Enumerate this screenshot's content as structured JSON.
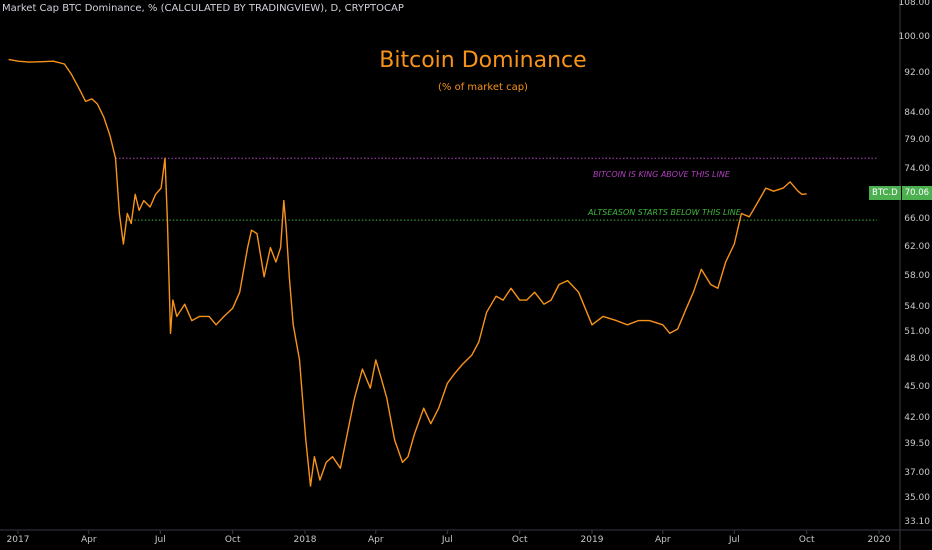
{
  "header": {
    "label": "Market Cap BTC Dominance, % (CALCULATED BY TRADINGVIEW), D, CRYPTOCAP"
  },
  "chart_data": {
    "type": "line",
    "title": "Bitcoin Dominance",
    "subtitle": "(% of market cap)",
    "xlabel": "",
    "ylabel": "",
    "y_scale": "log",
    "ylim": [
      33.1,
      108
    ],
    "xlim": [
      "2017-01-01",
      "2020-01-31"
    ],
    "grid": false,
    "line_color": "#f7931a",
    "y_ticks": [
      "108.00",
      "100.00",
      "92.00",
      "84.00",
      "79.00",
      "74.00",
      "70.06",
      "66.00",
      "62.00",
      "58.00",
      "54.00",
      "51.00",
      "48.00",
      "45.00",
      "42.00",
      "39.50",
      "37.00",
      "35.00",
      "33.10"
    ],
    "x_ticks": [
      {
        "label": "2017",
        "date": "2017-01-01"
      },
      {
        "label": "Apr",
        "date": "2017-04-01"
      },
      {
        "label": "Jul",
        "date": "2017-07-01"
      },
      {
        "label": "Oct",
        "date": "2017-10-01"
      },
      {
        "label": "2018",
        "date": "2018-01-01"
      },
      {
        "label": "Apr",
        "date": "2018-04-01"
      },
      {
        "label": "Jul",
        "date": "2018-07-01"
      },
      {
        "label": "Oct",
        "date": "2018-10-01"
      },
      {
        "label": "2019",
        "date": "2019-01-01"
      },
      {
        "label": "Apr",
        "date": "2019-04-01"
      },
      {
        "label": "Jul",
        "date": "2019-07-01"
      },
      {
        "label": "Oct",
        "date": "2019-10-01"
      },
      {
        "label": "2020",
        "date": "2020-01-01"
      }
    ],
    "series": [
      {
        "x": [
          "2016-12-20",
          "2017-01-01",
          "2017-01-15",
          "2017-02-01",
          "2017-02-15",
          "2017-03-01",
          "2017-03-10",
          "2017-03-20",
          "2017-03-28",
          "2017-04-05",
          "2017-04-12",
          "2017-04-20",
          "2017-04-28",
          "2017-05-05",
          "2017-05-10",
          "2017-05-15",
          "2017-05-20",
          "2017-05-25",
          "2017-05-30",
          "2017-06-04",
          "2017-06-10",
          "2017-06-18",
          "2017-06-25",
          "2017-07-02",
          "2017-07-07",
          "2017-07-10",
          "2017-07-14",
          "2017-07-17",
          "2017-07-22",
          "2017-08-01",
          "2017-08-10",
          "2017-08-20",
          "2017-09-01",
          "2017-09-10",
          "2017-09-20",
          "2017-10-01",
          "2017-10-10",
          "2017-10-20",
          "2017-10-25",
          "2017-11-01",
          "2017-11-10",
          "2017-11-18",
          "2017-11-25",
          "2017-12-01",
          "2017-12-05",
          "2017-12-08",
          "2017-12-12",
          "2017-12-17",
          "2017-12-25",
          "2018-01-02",
          "2018-01-08",
          "2018-01-13",
          "2018-01-20",
          "2018-01-28",
          "2018-02-05",
          "2018-02-15",
          "2018-02-25",
          "2018-03-05",
          "2018-03-15",
          "2018-03-25",
          "2018-04-01",
          "2018-04-08",
          "2018-04-15",
          "2018-04-25",
          "2018-05-05",
          "2018-05-12",
          "2018-05-20",
          "2018-06-01",
          "2018-06-10",
          "2018-06-20",
          "2018-07-01",
          "2018-07-10",
          "2018-07-20",
          "2018-08-01",
          "2018-08-10",
          "2018-08-20",
          "2018-09-01",
          "2018-09-10",
          "2018-09-20",
          "2018-10-01",
          "2018-10-10",
          "2018-10-20",
          "2018-11-01",
          "2018-11-10",
          "2018-11-20",
          "2018-12-01",
          "2018-12-15",
          "2019-01-01",
          "2019-01-15",
          "2019-02-01",
          "2019-02-15",
          "2019-03-01",
          "2019-03-15",
          "2019-04-01",
          "2019-04-10",
          "2019-04-20",
          "2019-05-01",
          "2019-05-10",
          "2019-05-20",
          "2019-06-01",
          "2019-06-10",
          "2019-06-20",
          "2019-07-01",
          "2019-07-10",
          "2019-07-20",
          "2019-08-01",
          "2019-08-10",
          "2019-08-20",
          "2019-09-01",
          "2019-09-10",
          "2019-09-20",
          "2019-09-25",
          "2019-10-01"
        ],
        "values": [
          95.2,
          94.8,
          94.6,
          94.7,
          94.8,
          94.2,
          92.0,
          89.0,
          86.5,
          87.0,
          86.0,
          83.5,
          80.0,
          76.0,
          67.0,
          62.5,
          67.0,
          65.5,
          70.0,
          67.5,
          69.0,
          68.0,
          70.0,
          71.0,
          76.0,
          66.0,
          51.0,
          55.0,
          53.0,
          54.5,
          52.5,
          53.0,
          53.0,
          52.0,
          53.0,
          54.0,
          56.0,
          62.0,
          64.5,
          64.0,
          58.0,
          62.0,
          60.0,
          62.0,
          69.0,
          65.0,
          58.0,
          52.0,
          48.0,
          40.0,
          36.0,
          38.5,
          36.5,
          38.0,
          38.5,
          37.5,
          41.0,
          44.0,
          47.0,
          45.0,
          48.0,
          46.0,
          44.0,
          40.0,
          38.0,
          38.5,
          40.5,
          43.0,
          41.5,
          43.0,
          45.5,
          46.5,
          47.5,
          48.5,
          50.0,
          53.5,
          55.5,
          55.0,
          56.5,
          55.0,
          55.0,
          56.0,
          54.5,
          55.0,
          57.0,
          57.5,
          56.0,
          52.0,
          53.0,
          52.5,
          52.0,
          52.5,
          52.5,
          52.0,
          51.0,
          51.5,
          54.0,
          56.0,
          59.0,
          57.0,
          56.5,
          60.0,
          62.5,
          67.0,
          66.5,
          69.0,
          71.0,
          70.5,
          71.0,
          72.0,
          70.5,
          70.0,
          70.06
        ]
      }
    ],
    "reference_lines": [
      {
        "label": "BITCOIN IS KING ABOVE THIS LINE",
        "y": 76.0,
        "x_start": "2017-05-05",
        "color": "#b23fbf"
      },
      {
        "label": "ALTSEASON STARTS BELOW THIS LINE",
        "y": 66.0,
        "x_start": "2017-05-20",
        "color": "#3fb63f"
      }
    ],
    "last_value": {
      "symbol": "BTC.D",
      "value": "70.06",
      "color": "#4caf50"
    }
  }
}
